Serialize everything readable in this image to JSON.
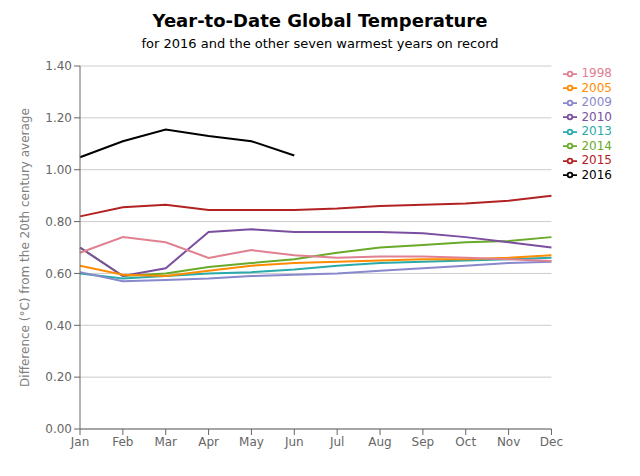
{
  "chart_data": {
    "type": "line",
    "title": "Year-to-Date Global Temperature",
    "subtitle": "for 2016 and the other seven warmest years on record",
    "ylabel": "Difference (°C) from the 20th century average",
    "categories": [
      "Jan",
      "Feb",
      "Mar",
      "Apr",
      "May",
      "Jun",
      "Jul",
      "Aug",
      "Sep",
      "Oct",
      "Nov",
      "Dec"
    ],
    "series": [
      {
        "name": "2015",
        "color": "#b22222",
        "values": [
          0.82,
          0.855,
          0.865,
          0.845,
          0.845,
          0.845,
          0.85,
          0.86,
          0.865,
          0.87,
          0.88,
          0.9
        ]
      },
      {
        "name": "2016",
        "color": "#000000",
        "values": [
          1.048,
          1.11,
          1.155,
          1.13,
          1.11,
          1.055,
          null,
          null,
          null,
          null,
          null,
          null
        ]
      },
      {
        "name": "2014",
        "color": "#6aaa2a",
        "values": [
          0.7,
          0.59,
          0.6,
          0.625,
          0.64,
          0.655,
          0.68,
          0.7,
          0.71,
          0.72,
          0.725,
          0.74
        ]
      },
      {
        "name": "2010",
        "color": "#7b4fa0",
        "values": [
          0.7,
          0.59,
          0.62,
          0.76,
          0.77,
          0.76,
          0.76,
          0.76,
          0.755,
          0.74,
          0.72,
          0.7
        ]
      },
      {
        "name": "2013",
        "color": "#2aaaaa",
        "values": [
          0.6,
          0.58,
          0.59,
          0.6,
          0.605,
          0.615,
          0.63,
          0.64,
          0.645,
          0.65,
          0.655,
          0.66
        ]
      },
      {
        "name": "2005",
        "color": "#ff8c00",
        "values": [
          0.63,
          0.595,
          0.59,
          0.61,
          0.63,
          0.64,
          0.645,
          0.65,
          0.655,
          0.655,
          0.66,
          0.67
        ]
      },
      {
        "name": "2009",
        "color": "#8888cc",
        "values": [
          0.605,
          0.57,
          0.575,
          0.58,
          0.59,
          0.595,
          0.6,
          0.61,
          0.62,
          0.63,
          0.64,
          0.645
        ]
      },
      {
        "name": "1998",
        "color": "#e08090",
        "values": [
          0.68,
          0.74,
          0.72,
          0.66,
          0.69,
          0.67,
          0.66,
          0.665,
          0.665,
          0.66,
          0.655,
          0.648
        ]
      }
    ],
    "ylim": [
      0.0,
      1.4
    ],
    "yticks": [
      {
        "value": 0.0,
        "label": "0.00"
      },
      {
        "value": 0.2,
        "label": "0.20"
      },
      {
        "value": 0.4,
        "label": "0.40"
      },
      {
        "value": 0.6,
        "label": "0.60"
      },
      {
        "value": 0.8,
        "label": "0.80"
      },
      {
        "value": 1.0,
        "label": "1.00"
      },
      {
        "value": 1.2,
        "label": "1.20"
      },
      {
        "value": 1.4,
        "label": "1.40"
      }
    ],
    "grid": true,
    "legend": "right"
  }
}
